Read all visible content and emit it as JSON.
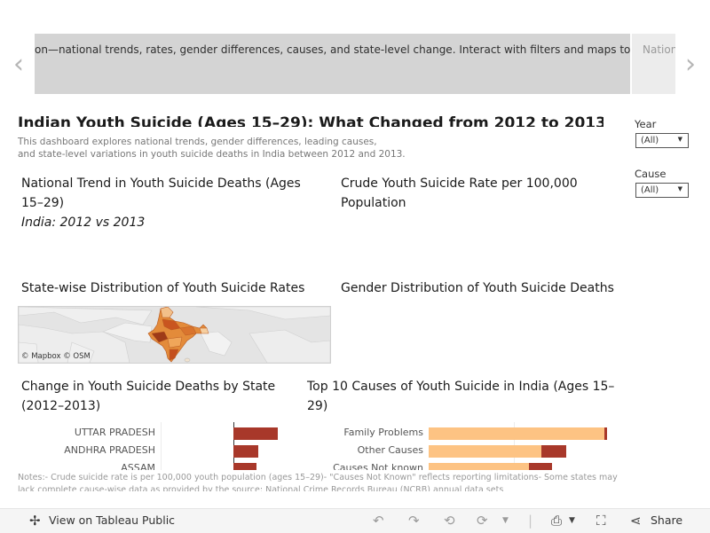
{
  "story": {
    "current_caption": "on—national trends, rates, gender differences, causes, and state-level change. Interact with filters and maps to",
    "next_caption": "Nation",
    "prev_arrow": "‹",
    "next_arrow": "›"
  },
  "dashboard": {
    "title": "Indian Youth Suicide (Ages 15–29): What Changed from 2012 to 2013?",
    "subtitle_line1": "This dashboard explores national trends, gender differences, leading causes,",
    "subtitle_line2": "and state-level variations in youth suicide deaths in India between 2012 and 2013."
  },
  "filters": [
    {
      "label": "Year",
      "value": "(All)"
    },
    {
      "label": "Cause",
      "value": "(All)"
    }
  ],
  "sheets": {
    "national_trend": {
      "title_line1": "National Trend in Youth Suicide Deaths (Ages",
      "title_line2": "15–29)",
      "subtitle": "India: 2012 vs 2013"
    },
    "crude_rate": {
      "title_line1": "Crude Youth Suicide Rate per 100,000",
      "title_line2": "Population"
    },
    "state_map": {
      "title": "State-wise Distribution of Youth Suicide Rates",
      "credit": "© Mapbox  © OSM"
    },
    "gender": {
      "title": "Gender Distribution of Youth Suicide Deaths"
    },
    "state_change": {
      "title_line1": "Change in Youth Suicide Deaths by State",
      "title_line2": "(2012–2013)"
    },
    "top_causes": {
      "title_line1": "Top 10 Causes of Youth Suicide in India (Ages 15–",
      "title_line2": "29)"
    }
  },
  "chart_data": [
    {
      "type": "bar",
      "categories": [
        "UTTAR PRADESH",
        "ANDHRA PRADESH",
        "ASSAM"
      ],
      "values": [
        50,
        28,
        26
      ],
      "color": "#a8382a"
    },
    {
      "type": "bar",
      "categories": [
        "Family Problems",
        "Other Causes",
        "Causes Not known"
      ],
      "series": [
        {
          "values": [
            198,
            127,
            113
          ],
          "color": "#fdc383"
        },
        {
          "values": [
            3,
            28,
            26
          ],
          "color": "#a8382a"
        }
      ]
    }
  ],
  "notes": "Notes:- Crude suicide rate is per 100,000 youth population (ages 15–29)- \"Causes Not Known\" reflects reporting limitations- Some states may lack complete cause-wise data as provided by the source: National Crime Records Bureau (NCRB) annual data sets",
  "toolbar": {
    "view_label": "View on Tableau Public",
    "share_label": "Share"
  }
}
